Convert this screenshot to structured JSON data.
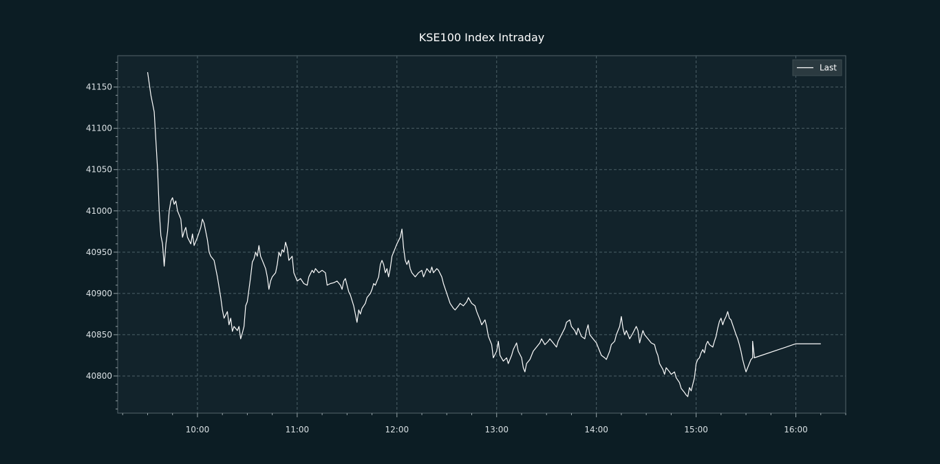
{
  "chart_data": {
    "type": "line",
    "title": "KSE100 Index Intraday",
    "xlabel": "",
    "ylabel": "",
    "x_axis": {
      "kind": "time",
      "range": [
        "09:12",
        "16:30"
      ],
      "ticks": [
        "10:00",
        "11:00",
        "12:00",
        "13:00",
        "14:00",
        "15:00",
        "16:00"
      ]
    },
    "y_axis": {
      "range": [
        40755,
        41188
      ],
      "ticks": [
        40800,
        40850,
        40900,
        40950,
        41000,
        41050,
        41100,
        41150
      ]
    },
    "grid": true,
    "legend": {
      "position": "top-right",
      "entries": [
        "Last"
      ]
    },
    "series": [
      {
        "name": "Last",
        "color": "#ffffff",
        "points": [
          [
            "09:30",
            41168
          ],
          [
            "09:32",
            41140
          ],
          [
            "09:34",
            41120
          ],
          [
            "09:36",
            41050
          ],
          [
            "09:37",
            41000
          ],
          [
            "09:38",
            40970
          ],
          [
            "09:39",
            40960
          ],
          [
            "09:40",
            40933
          ],
          [
            "09:41",
            40960
          ],
          [
            "09:42",
            40975
          ],
          [
            "09:43",
            41000
          ],
          [
            "09:44",
            41012
          ],
          [
            "09:45",
            41016
          ],
          [
            "09:46",
            41008
          ],
          [
            "09:47",
            41012
          ],
          [
            "09:48",
            41000
          ],
          [
            "09:50",
            40990
          ],
          [
            "09:51",
            40968
          ],
          [
            "09:52",
            40975
          ],
          [
            "09:53",
            40980
          ],
          [
            "09:54",
            40968
          ],
          [
            "09:56",
            40960
          ],
          [
            "09:57",
            40972
          ],
          [
            "09:58",
            40958
          ],
          [
            "10:00",
            40968
          ],
          [
            "10:02",
            40980
          ],
          [
            "10:03",
            40990
          ],
          [
            "10:04",
            40985
          ],
          [
            "10:06",
            40965
          ],
          [
            "10:07",
            40950
          ],
          [
            "10:08",
            40945
          ],
          [
            "10:10",
            40940
          ],
          [
            "10:12",
            40920
          ],
          [
            "10:14",
            40895
          ],
          [
            "10:15",
            40880
          ],
          [
            "10:16",
            40870
          ],
          [
            "10:18",
            40878
          ],
          [
            "10:19",
            40862
          ],
          [
            "10:20",
            40870
          ],
          [
            "10:21",
            40854
          ],
          [
            "10:22",
            40860
          ],
          [
            "10:24",
            40855
          ],
          [
            "10:25",
            40860
          ],
          [
            "10:26",
            40845
          ],
          [
            "10:27",
            40852
          ],
          [
            "10:28",
            40860
          ],
          [
            "10:29",
            40885
          ],
          [
            "10:30",
            40890
          ],
          [
            "10:31",
            40905
          ],
          [
            "10:32",
            40920
          ],
          [
            "10:33",
            40938
          ],
          [
            "10:34",
            40942
          ],
          [
            "10:35",
            40950
          ],
          [
            "10:36",
            40945
          ],
          [
            "10:37",
            40958
          ],
          [
            "10:38",
            40945
          ],
          [
            "10:39",
            40940
          ],
          [
            "10:41",
            40930
          ],
          [
            "10:42",
            40920
          ],
          [
            "10:43",
            40905
          ],
          [
            "10:44",
            40915
          ],
          [
            "10:45",
            40920
          ],
          [
            "10:47",
            40925
          ],
          [
            "10:48",
            40935
          ],
          [
            "10:49",
            40950
          ],
          [
            "10:50",
            40945
          ],
          [
            "10:51",
            40953
          ],
          [
            "10:52",
            40950
          ],
          [
            "10:53",
            40962
          ],
          [
            "10:54",
            40955
          ],
          [
            "10:55",
            40940
          ],
          [
            "10:57",
            40945
          ],
          [
            "10:58",
            40925
          ],
          [
            "11:00",
            40915
          ],
          [
            "11:02",
            40918
          ],
          [
            "11:04",
            40912
          ],
          [
            "11:06",
            40910
          ],
          [
            "11:07",
            40920
          ],
          [
            "11:09",
            40928
          ],
          [
            "11:10",
            40925
          ],
          [
            "11:11",
            40930
          ],
          [
            "11:13",
            40925
          ],
          [
            "11:15",
            40928
          ],
          [
            "11:17",
            40925
          ],
          [
            "11:18",
            40910
          ],
          [
            "11:20",
            40912
          ],
          [
            "11:22",
            40913
          ],
          [
            "11:24",
            40915
          ],
          [
            "11:26",
            40910
          ],
          [
            "11:27",
            40905
          ],
          [
            "11:28",
            40915
          ],
          [
            "11:29",
            40918
          ],
          [
            "11:30",
            40910
          ],
          [
            "11:31",
            40902
          ],
          [
            "11:32",
            40898
          ],
          [
            "11:34",
            40885
          ],
          [
            "11:35",
            40875
          ],
          [
            "11:36",
            40865
          ],
          [
            "11:37",
            40880
          ],
          [
            "11:38",
            40875
          ],
          [
            "11:39",
            40882
          ],
          [
            "11:41",
            40888
          ],
          [
            "11:42",
            40895
          ],
          [
            "11:44",
            40900
          ],
          [
            "11:45",
            40905
          ],
          [
            "11:46",
            40912
          ],
          [
            "11:47",
            40910
          ],
          [
            "11:49",
            40920
          ],
          [
            "11:50",
            40935
          ],
          [
            "11:51",
            40940
          ],
          [
            "11:52",
            40935
          ],
          [
            "11:53",
            40925
          ],
          [
            "11:54",
            40930
          ],
          [
            "11:55",
            40920
          ],
          [
            "11:56",
            40930
          ],
          [
            "11:57",
            40945
          ],
          [
            "11:58",
            40950
          ],
          [
            "12:00",
            40960
          ],
          [
            "12:02",
            40968
          ],
          [
            "12:03",
            40978
          ],
          [
            "12:04",
            40955
          ],
          [
            "12:05",
            40940
          ],
          [
            "12:06",
            40935
          ],
          [
            "12:07",
            40940
          ],
          [
            "12:08",
            40930
          ],
          [
            "12:09",
            40925
          ],
          [
            "12:11",
            40920
          ],
          [
            "12:13",
            40925
          ],
          [
            "12:15",
            40928
          ],
          [
            "12:16",
            40920
          ],
          [
            "12:18",
            40930
          ],
          [
            "12:20",
            40925
          ],
          [
            "12:21",
            40932
          ],
          [
            "12:22",
            40925
          ],
          [
            "12:24",
            40930
          ],
          [
            "12:25",
            40928
          ],
          [
            "12:27",
            40920
          ],
          [
            "12:28",
            40912
          ],
          [
            "12:30",
            40900
          ],
          [
            "12:32",
            40888
          ],
          [
            "12:34",
            40882
          ],
          [
            "12:35",
            40880
          ],
          [
            "12:37",
            40885
          ],
          [
            "12:38",
            40888
          ],
          [
            "12:40",
            40885
          ],
          [
            "12:42",
            40890
          ],
          [
            "12:43",
            40895
          ],
          [
            "12:45",
            40888
          ],
          [
            "12:47",
            40885
          ],
          [
            "12:48",
            40878
          ],
          [
            "12:50",
            40868
          ],
          [
            "12:51",
            40862
          ],
          [
            "12:53",
            40868
          ],
          [
            "12:54",
            40860
          ],
          [
            "12:55",
            40848
          ],
          [
            "12:57",
            40838
          ],
          [
            "12:58",
            40822
          ],
          [
            "13:00",
            40830
          ],
          [
            "13:01",
            40842
          ],
          [
            "13:02",
            40825
          ],
          [
            "13:04",
            40818
          ],
          [
            "13:06",
            40822
          ],
          [
            "13:07",
            40815
          ],
          [
            "13:09",
            40825
          ],
          [
            "13:10",
            40832
          ],
          [
            "13:12",
            40840
          ],
          [
            "13:13",
            40830
          ],
          [
            "13:15",
            40822
          ],
          [
            "13:16",
            40810
          ],
          [
            "13:17",
            40805
          ],
          [
            "13:18",
            40815
          ],
          [
            "13:20",
            40820
          ],
          [
            "13:22",
            40830
          ],
          [
            "13:24",
            40835
          ],
          [
            "13:26",
            40840
          ],
          [
            "13:27",
            40845
          ],
          [
            "13:29",
            40838
          ],
          [
            "13:31",
            40842
          ],
          [
            "13:32",
            40845
          ],
          [
            "13:34",
            40840
          ],
          [
            "13:36",
            40835
          ],
          [
            "13:37",
            40842
          ],
          [
            "13:39",
            40850
          ],
          [
            "13:41",
            40858
          ],
          [
            "13:42",
            40865
          ],
          [
            "13:44",
            40868
          ],
          [
            "13:45",
            40860
          ],
          [
            "13:47",
            40855
          ],
          [
            "13:48",
            40850
          ],
          [
            "13:49",
            40858
          ],
          [
            "13:51",
            40848
          ],
          [
            "13:53",
            40845
          ],
          [
            "13:54",
            40855
          ],
          [
            "13:55",
            40862
          ],
          [
            "13:56",
            40850
          ],
          [
            "13:58",
            40845
          ],
          [
            "14:00",
            40840
          ],
          [
            "14:02",
            40830
          ],
          [
            "14:03",
            40825
          ],
          [
            "14:05",
            40822
          ],
          [
            "14:06",
            40820
          ],
          [
            "14:08",
            40830
          ],
          [
            "14:09",
            40838
          ],
          [
            "14:11",
            40842
          ],
          [
            "14:12",
            40850
          ],
          [
            "14:13",
            40855
          ],
          [
            "14:14",
            40860
          ],
          [
            "14:15",
            40872
          ],
          [
            "14:16",
            40858
          ],
          [
            "14:17",
            40850
          ],
          [
            "14:18",
            40855
          ],
          [
            "14:20",
            40845
          ],
          [
            "14:22",
            40852
          ],
          [
            "14:24",
            40860
          ],
          [
            "14:25",
            40855
          ],
          [
            "14:26",
            40840
          ],
          [
            "14:27",
            40848
          ],
          [
            "14:28",
            40855
          ],
          [
            "14:29",
            40850
          ],
          [
            "14:31",
            40845
          ],
          [
            "14:33",
            40840
          ],
          [
            "14:35",
            40838
          ],
          [
            "14:36",
            40830
          ],
          [
            "14:37",
            40825
          ],
          [
            "14:38",
            40815
          ],
          [
            "14:40",
            40808
          ],
          [
            "14:41",
            40802
          ],
          [
            "14:42",
            40810
          ],
          [
            "14:44",
            40805
          ],
          [
            "14:45",
            40802
          ],
          [
            "14:47",
            40805
          ],
          [
            "14:48",
            40798
          ],
          [
            "14:50",
            40792
          ],
          [
            "14:51",
            40785
          ],
          [
            "14:53",
            40780
          ],
          [
            "14:54",
            40777
          ],
          [
            "14:55",
            40775
          ],
          [
            "14:56",
            40786
          ],
          [
            "14:57",
            40782
          ],
          [
            "14:58",
            40790
          ],
          [
            "14:59",
            40798
          ],
          [
            "15:00",
            40815
          ],
          [
            "15:01",
            40820
          ],
          [
            "15:02",
            40822
          ],
          [
            "15:03",
            40828
          ],
          [
            "15:04",
            40832
          ],
          [
            "15:05",
            40828
          ],
          [
            "15:06",
            40838
          ],
          [
            "15:07",
            40842
          ],
          [
            "15:08",
            40838
          ],
          [
            "15:10",
            40835
          ],
          [
            "15:11",
            40842
          ],
          [
            "15:12",
            40848
          ],
          [
            "15:13",
            40858
          ],
          [
            "15:14",
            40866
          ],
          [
            "15:15",
            40870
          ],
          [
            "15:16",
            40862
          ],
          [
            "15:17",
            40868
          ],
          [
            "15:18",
            40872
          ],
          [
            "15:19",
            40878
          ],
          [
            "15:20",
            40870
          ],
          [
            "15:21",
            40868
          ],
          [
            "15:22",
            40862
          ],
          [
            "15:23",
            40856
          ],
          [
            "15:24",
            40850
          ],
          [
            "15:25",
            40845
          ],
          [
            "15:26",
            40838
          ],
          [
            "15:27",
            40830
          ],
          [
            "15:28",
            40820
          ],
          [
            "15:29",
            40812
          ],
          [
            "15:30",
            40805
          ],
          [
            "15:31",
            40810
          ],
          [
            "15:32",
            40815
          ],
          [
            "15:33",
            40820
          ],
          [
            "15:34",
            40822
          ],
          [
            "15:34",
            40842
          ],
          [
            "15:35",
            40824
          ],
          [
            "15:35",
            40822
          ],
          [
            "16:00",
            40839
          ],
          [
            "16:15",
            40839
          ]
        ]
      }
    ]
  }
}
